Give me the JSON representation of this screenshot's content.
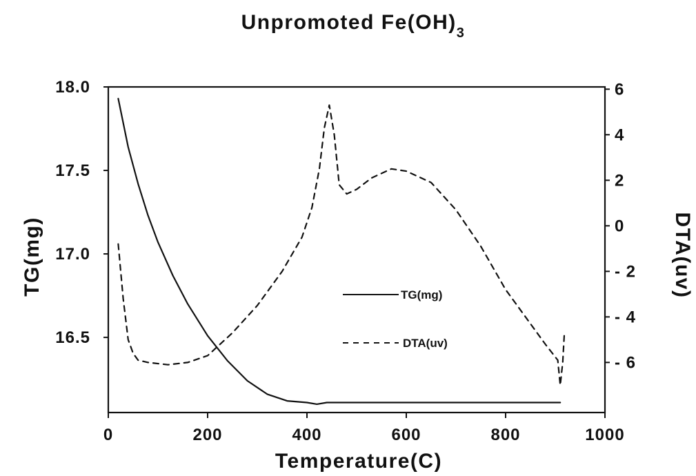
{
  "chart_data": {
    "type": "line",
    "title": "Unpromoted  Fe(OH)",
    "title_subscript": "3",
    "xlabel": "Temperature(C)",
    "ylabel_left": "TG(mg)",
    "ylabel_right": "DTA(uv)",
    "xlim": [
      0,
      1000
    ],
    "ylim_left": [
      16.05,
      18.0
    ],
    "ylim_right": [
      -8.2,
      6.1
    ],
    "x_ticks": [
      0,
      200,
      400,
      600,
      800,
      1000
    ],
    "x_tick_labels": [
      "0",
      "200",
      "400",
      "600",
      "800",
      "1000"
    ],
    "y_left_ticks": [
      16.5,
      17.0,
      17.5,
      18.0
    ],
    "y_left_tick_labels": [
      "16.5",
      "17.0",
      "17.5",
      "18.0"
    ],
    "y_right_ticks": [
      -6,
      -4,
      -2,
      0,
      2,
      4,
      6
    ],
    "y_right_tick_labels": [
      "- 6",
      "- 4",
      "- 2",
      "0",
      "2",
      "4",
      "6"
    ],
    "grid": false,
    "legend_position": "center",
    "series": [
      {
        "name": "TG(mg)",
        "axis": "left",
        "style": "solid",
        "x": [
          20,
          40,
          60,
          80,
          100,
          130,
          160,
          200,
          240,
          280,
          320,
          360,
          400,
          420,
          440,
          500,
          600,
          700,
          800,
          910
        ],
        "y": [
          17.93,
          17.64,
          17.42,
          17.23,
          17.07,
          16.87,
          16.7,
          16.51,
          16.36,
          16.24,
          16.16,
          16.12,
          16.11,
          16.1,
          16.11,
          16.11,
          16.11,
          16.11,
          16.11,
          16.11
        ]
      },
      {
        "name": "DTA(uv)",
        "axis": "right",
        "style": "dashed",
        "x": [
          20,
          30,
          40,
          50,
          60,
          80,
          120,
          160,
          200,
          250,
          300,
          350,
          390,
          410,
          425,
          435,
          445,
          455,
          465,
          480,
          500,
          530,
          570,
          600,
          650,
          700,
          750,
          800,
          850,
          880,
          905,
          910,
          915,
          918
        ],
        "y": [
          -0.8,
          -3.2,
          -5.0,
          -5.6,
          -5.9,
          -6.0,
          -6.1,
          -6.0,
          -5.7,
          -4.7,
          -3.5,
          -2.0,
          -0.5,
          0.8,
          2.5,
          4.3,
          5.3,
          4.0,
          1.8,
          1.4,
          1.6,
          2.1,
          2.5,
          2.4,
          1.9,
          0.7,
          -0.9,
          -2.8,
          -4.3,
          -5.2,
          -5.9,
          -7.0,
          -6.0,
          -4.8
        ]
      }
    ]
  }
}
